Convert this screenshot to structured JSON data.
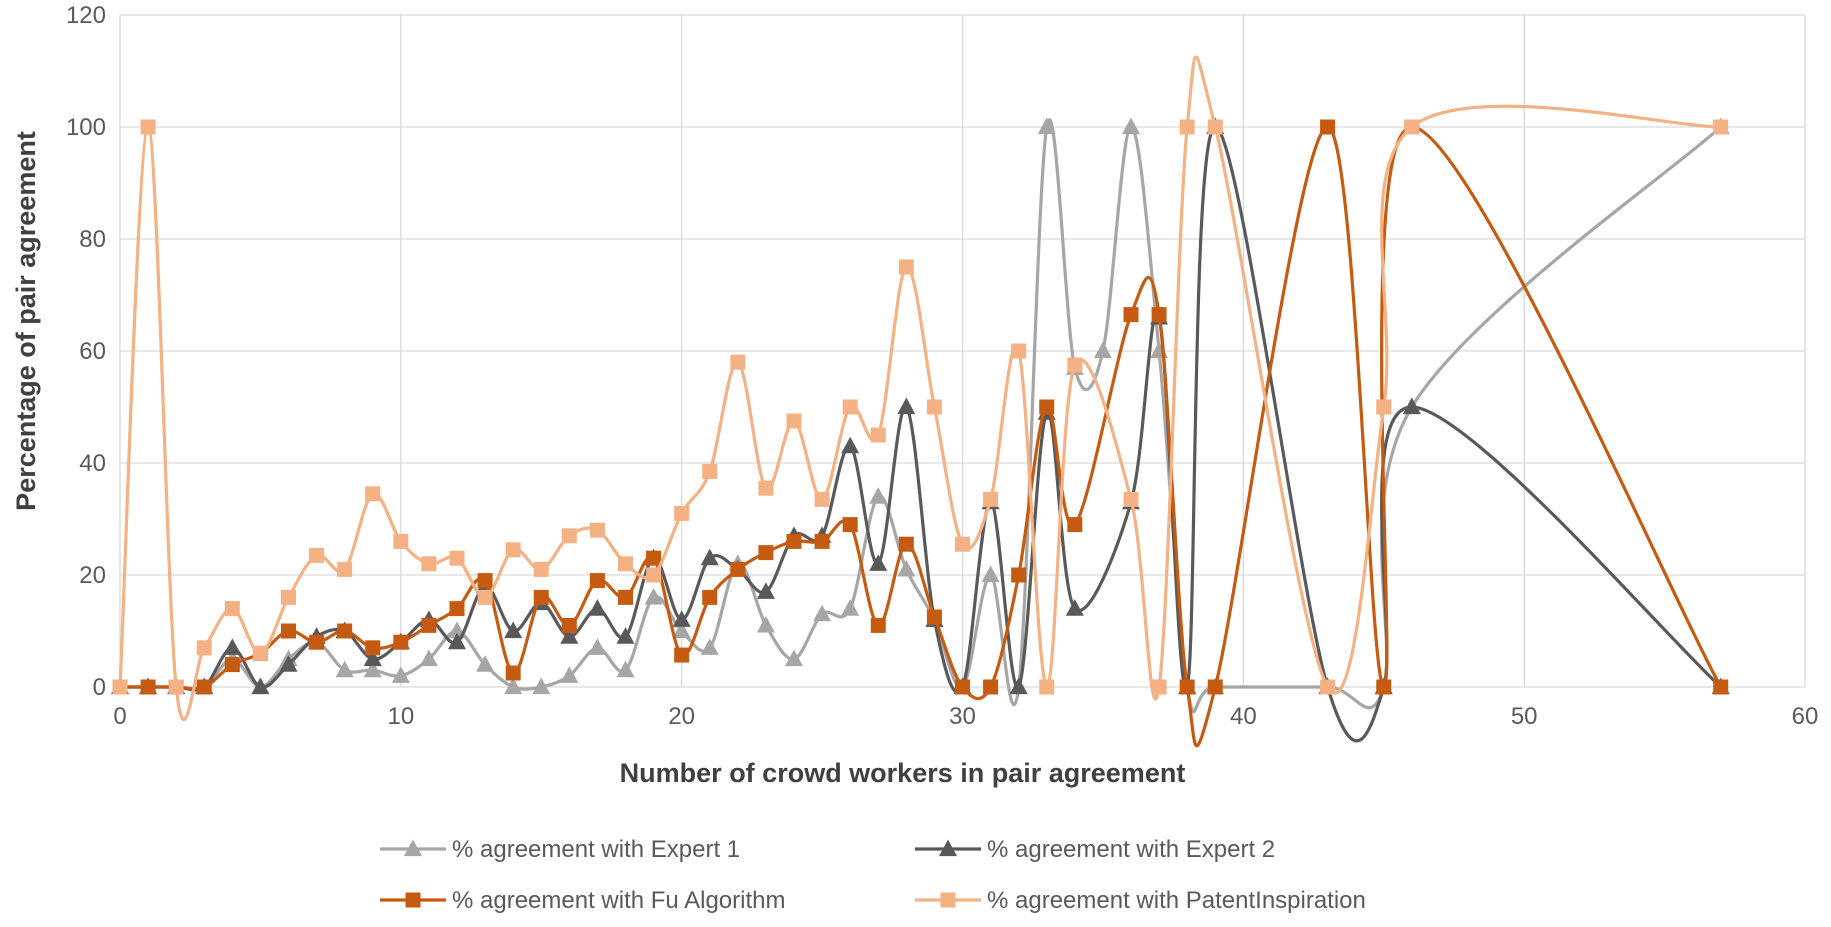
{
  "chart_data": {
    "type": "line",
    "title": "",
    "xlabel": "Number of crowd workers in pair agreement",
    "ylabel": "Percentage of pair agreement",
    "xlim": [
      0,
      60
    ],
    "ylim": [
      0,
      120
    ],
    "x_ticks": [
      0,
      10,
      20,
      30,
      40,
      50,
      60
    ],
    "y_ticks": [
      0,
      20,
      40,
      60,
      80,
      100,
      120
    ],
    "grid": true,
    "legend_position": "bottom",
    "series": [
      {
        "name": "% agreement with Expert 1",
        "color": "#a6a6a6",
        "marker": "triangle",
        "x": [
          0,
          1,
          2,
          3,
          4,
          5,
          6,
          7,
          8,
          9,
          10,
          11,
          12,
          13,
          14,
          15,
          16,
          17,
          18,
          19,
          20,
          21,
          22,
          23,
          24,
          25,
          26,
          27,
          28,
          29,
          30,
          31,
          32,
          33,
          34,
          35,
          36,
          37,
          38,
          39,
          43,
          45,
          46,
          57
        ],
        "y": [
          0,
          0,
          0,
          0,
          5,
          0,
          5,
          8,
          3,
          3,
          2,
          5,
          10,
          4,
          0,
          0,
          2,
          7,
          3,
          16,
          10,
          7,
          22,
          11,
          5,
          13,
          14,
          34,
          21,
          12,
          0,
          20,
          0,
          100,
          57,
          60,
          100,
          60,
          0,
          0,
          0,
          0,
          50,
          100
        ]
      },
      {
        "name": "% agreement with Expert 2",
        "color": "#595959",
        "marker": "triangle",
        "x": [
          0,
          1,
          2,
          3,
          4,
          5,
          6,
          7,
          8,
          9,
          10,
          11,
          12,
          13,
          14,
          15,
          16,
          17,
          18,
          19,
          20,
          21,
          22,
          23,
          24,
          25,
          26,
          27,
          28,
          29,
          30,
          31,
          32,
          33,
          34,
          36,
          37,
          38,
          39,
          43,
          45,
          46,
          57
        ],
        "y": [
          0,
          0,
          0,
          0,
          7,
          0,
          4,
          9,
          10,
          5,
          8,
          12,
          8,
          18,
          10,
          15,
          9,
          14,
          9,
          23,
          12,
          23,
          21,
          17,
          27,
          27,
          43,
          22,
          50,
          12,
          0,
          33,
          0,
          49,
          14,
          33,
          66,
          0,
          100,
          0,
          0,
          50,
          0
        ]
      },
      {
        "name": "% agreement with Fu Algorithm",
        "color": "#c55a11",
        "marker": "square",
        "x": [
          0,
          1,
          2,
          3,
          4,
          5,
          6,
          7,
          8,
          9,
          10,
          11,
          12,
          13,
          14,
          15,
          16,
          17,
          18,
          19,
          20,
          21,
          22,
          23,
          24,
          25,
          26,
          27,
          28,
          29,
          30,
          31,
          32,
          33,
          34,
          36,
          37,
          38,
          39,
          43,
          45,
          46,
          57
        ],
        "y": [
          0,
          0,
          0,
          0,
          4,
          6,
          10,
          8,
          10,
          7,
          8,
          11,
          14,
          19,
          2.5,
          16,
          11,
          19,
          16,
          23,
          5.7,
          16,
          21,
          24,
          26,
          26,
          29,
          11,
          25.5,
          12.5,
          0,
          0,
          20,
          50,
          29,
          66.5,
          66.5,
          0,
          0,
          100,
          0,
          100,
          0
        ]
      },
      {
        "name": "% agreement with PatentInspiration",
        "color": "#f4b183",
        "marker": "square",
        "x": [
          0,
          1,
          2,
          3,
          4,
          5,
          6,
          7,
          8,
          9,
          10,
          11,
          12,
          13,
          14,
          15,
          16,
          17,
          18,
          19,
          20,
          21,
          22,
          23,
          24,
          25,
          26,
          27,
          28,
          29,
          30,
          31,
          32,
          33,
          34,
          36,
          37,
          38,
          39,
          43,
          45,
          46,
          57
        ],
        "y": [
          0,
          100,
          0,
          7,
          14,
          6,
          16,
          23.5,
          21,
          34.5,
          26,
          22,
          23,
          16,
          24.5,
          21,
          27,
          28,
          22,
          20,
          31,
          38.5,
          58,
          35.5,
          47.5,
          33.5,
          50,
          45,
          75,
          50,
          25.5,
          33.5,
          60,
          0,
          57.5,
          33.5,
          0,
          100,
          100,
          0,
          50,
          100,
          100
        ]
      }
    ]
  }
}
